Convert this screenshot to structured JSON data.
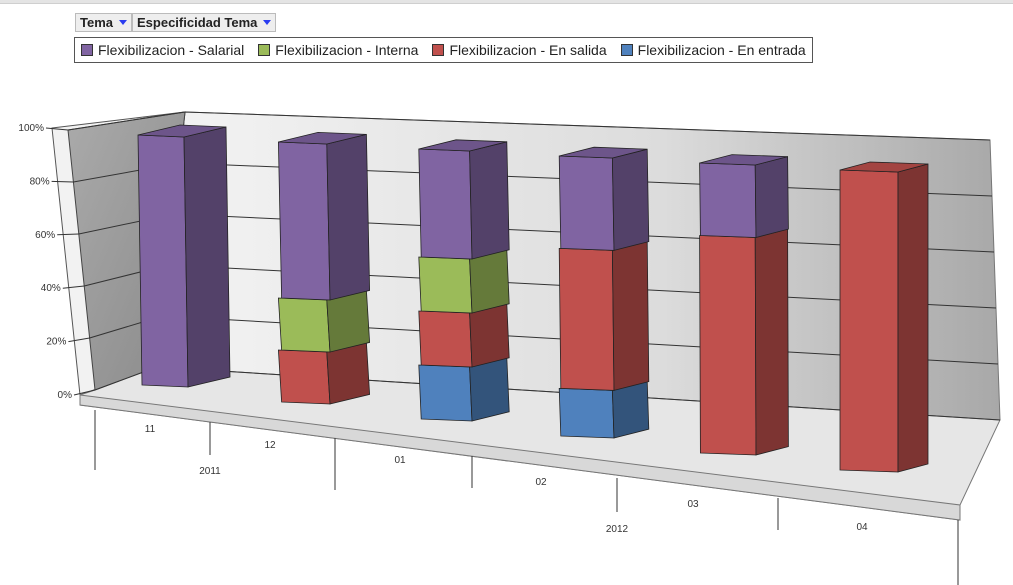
{
  "filters": [
    {
      "label": "Tema",
      "icon": "dropdown-triangle-icon"
    },
    {
      "label": "Especificidad Tema",
      "icon": "dropdown-triangle-icon"
    }
  ],
  "chart_data": {
    "type": "bar",
    "stacked": "percent",
    "projection": "3d",
    "categories": [
      "11",
      "12",
      "01",
      "02",
      "03",
      "04"
    ],
    "category_groups": [
      {
        "label": "2011",
        "span": [
          "11",
          "12"
        ]
      },
      {
        "label": "2012",
        "span": [
          "01",
          "02",
          "03",
          "04"
        ]
      }
    ],
    "yticks": [
      "0%",
      "20%",
      "40%",
      "60%",
      "80%",
      "100%"
    ],
    "ylim": [
      0,
      100
    ],
    "grid": true,
    "legend": "top",
    "series": [
      {
        "name": "Flexibilizacion - En entrada",
        "color": "#4f81bd",
        "values": [
          0,
          0,
          20,
          17,
          0,
          0
        ]
      },
      {
        "name": "Flexibilizacion - En salida",
        "color": "#c0504d",
        "values": [
          0,
          20,
          20,
          50,
          75,
          100
        ]
      },
      {
        "name": "Flexibilizacion - Interna",
        "color": "#9bbb59",
        "values": [
          0,
          20,
          20,
          0,
          0,
          0
        ]
      },
      {
        "name": "Flexibilizacion - Salarial",
        "color": "#8064a2",
        "values": [
          100,
          60,
          40,
          33,
          25,
          0
        ]
      }
    ],
    "legend_order": [
      3,
      2,
      1,
      0
    ]
  }
}
